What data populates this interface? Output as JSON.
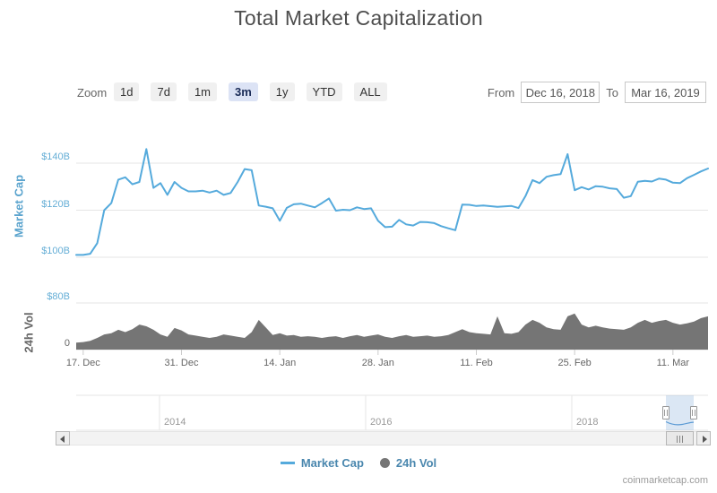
{
  "title": "Total Market Capitalization",
  "toolbar": {
    "zoom_label": "Zoom",
    "zoom_buttons": [
      {
        "label": "1d",
        "selected": false
      },
      {
        "label": "7d",
        "selected": false
      },
      {
        "label": "1m",
        "selected": false
      },
      {
        "label": "3m",
        "selected": true
      },
      {
        "label": "1y",
        "selected": false
      },
      {
        "label": "YTD",
        "selected": false
      },
      {
        "label": "ALL",
        "selected": false
      }
    ],
    "from_label": "From",
    "from_value": "Dec 16, 2018",
    "to_label": "To",
    "to_value": "Mar 16, 2019"
  },
  "axes": {
    "market_cap_title": "Market Cap",
    "volume_title": "24h Vol",
    "market_cap_ticks": [
      "$140B",
      "$120B",
      "$100B"
    ],
    "volume_ticks": [
      "$80B",
      "0"
    ]
  },
  "navigator": {
    "year_labels": [
      "2014",
      "2016",
      "2018"
    ]
  },
  "legend": {
    "items": [
      {
        "label": "Market Cap",
        "marker": "line",
        "color": "#55aadc"
      },
      {
        "label": "24h Vol",
        "marker": "circle",
        "color": "#757575"
      }
    ]
  },
  "watermark": "coinmarketcap.com",
  "colors": {
    "market_cap_line": "#55aadc",
    "volume_fill": "#757575",
    "axis_label_blue": "#65aed6",
    "axis_label_gray": "#666666",
    "gridline": "#e6e6e6",
    "selected_button_bg": "#dce3f5",
    "legend_text": "#4a87ae",
    "navigator_mask": "rgba(110,160,210,0.25)"
  },
  "chart_data": {
    "type": "line",
    "title": "Total Market Capitalization",
    "x_interval": "daily",
    "start_date": "2018-12-16",
    "end_date": "2019-03-16",
    "grid": "horizontal",
    "legend_position": "bottom",
    "dates": [
      "2018-12-16",
      "2018-12-17",
      "2018-12-18",
      "2018-12-19",
      "2018-12-20",
      "2018-12-21",
      "2018-12-22",
      "2018-12-23",
      "2018-12-24",
      "2018-12-25",
      "2018-12-26",
      "2018-12-27",
      "2018-12-28",
      "2018-12-29",
      "2018-12-30",
      "2018-12-31",
      "2019-01-01",
      "2019-01-02",
      "2019-01-03",
      "2019-01-04",
      "2019-01-05",
      "2019-01-06",
      "2019-01-07",
      "2019-01-08",
      "2019-01-09",
      "2019-01-10",
      "2019-01-11",
      "2019-01-12",
      "2019-01-13",
      "2019-01-14",
      "2019-01-15",
      "2019-01-16",
      "2019-01-17",
      "2019-01-18",
      "2019-01-19",
      "2019-01-20",
      "2019-01-21",
      "2019-01-22",
      "2019-01-23",
      "2019-01-24",
      "2019-01-25",
      "2019-01-26",
      "2019-01-27",
      "2019-01-28",
      "2019-01-29",
      "2019-01-30",
      "2019-01-31",
      "2019-02-01",
      "2019-02-02",
      "2019-02-03",
      "2019-02-04",
      "2019-02-05",
      "2019-02-06",
      "2019-02-07",
      "2019-02-08",
      "2019-02-09",
      "2019-02-10",
      "2019-02-11",
      "2019-02-12",
      "2019-02-13",
      "2019-02-14",
      "2019-02-15",
      "2019-02-16",
      "2019-02-17",
      "2019-02-18",
      "2019-02-19",
      "2019-02-20",
      "2019-02-21",
      "2019-02-22",
      "2019-02-23",
      "2019-02-24",
      "2019-02-25",
      "2019-02-26",
      "2019-02-27",
      "2019-02-28",
      "2019-03-01",
      "2019-03-02",
      "2019-03-03",
      "2019-03-04",
      "2019-03-05",
      "2019-03-06",
      "2019-03-07",
      "2019-03-08",
      "2019-03-09",
      "2019-03-10",
      "2019-03-11",
      "2019-03-12",
      "2019-03-13",
      "2019-03-14",
      "2019-03-15",
      "2019-03-16"
    ],
    "series": [
      {
        "name": "Market Cap",
        "type": "line",
        "color": "#55aadc",
        "unit": "billion USD",
        "ylim": [
          95,
          155
        ],
        "axis_tick_values": [
          100,
          120,
          140
        ],
        "values": [
          101,
          101,
          101.5,
          106,
          120,
          123,
          133,
          134,
          131,
          132,
          146,
          129.5,
          131.5,
          126.5,
          132,
          129.5,
          128,
          128,
          128.3,
          127.5,
          128.3,
          126.5,
          127.3,
          132,
          137.5,
          137,
          122,
          121.5,
          120.8,
          115.5,
          121,
          122.5,
          122.8,
          122,
          121.2,
          123,
          125,
          119.8,
          120.2,
          120,
          121.2,
          120.5,
          120.8,
          115.5,
          112.8,
          113,
          115.9,
          114,
          113.5,
          115,
          114.9,
          114.5,
          113.2,
          112.3,
          111.5,
          122.4,
          122.3,
          121.8,
          122,
          121.7,
          121.4,
          121.6,
          121.8,
          120.9,
          126,
          132.8,
          131.5,
          134.2,
          134.9,
          135.3,
          143.8,
          128.5,
          129.8,
          128.8,
          130.2,
          130,
          129.3,
          129,
          125.3,
          126,
          132.1,
          132.5,
          132.2,
          133.4,
          133,
          131.7,
          131.5,
          133.6,
          135,
          136.5,
          137.7
        ]
      },
      {
        "name": "24h Vol",
        "type": "area",
        "color": "#757575",
        "unit": "billion USD",
        "ylim": [
          0,
          80
        ],
        "axis_tick_values": [
          0,
          80
        ],
        "values": [
          12,
          13,
          15,
          20,
          26,
          28,
          34,
          30,
          35,
          43,
          40,
          34,
          26,
          22,
          37,
          33,
          26,
          24,
          22,
          20,
          22,
          26,
          24,
          22,
          20,
          30,
          51,
          38,
          25,
          28,
          24,
          25,
          22,
          23,
          22,
          20,
          22,
          23,
          20,
          23,
          25,
          22,
          24,
          26,
          22,
          20,
          23,
          25,
          22,
          23,
          24,
          22,
          23,
          25,
          30,
          35,
          30,
          28,
          27,
          26,
          57,
          28,
          27,
          30,
          43,
          51,
          46,
          38,
          35,
          34,
          57,
          62,
          43,
          38,
          41,
          38,
          36,
          35,
          34,
          38,
          46,
          51,
          46,
          49,
          51,
          46,
          43,
          45,
          48,
          54,
          57
        ]
      }
    ],
    "x_ticks": [
      {
        "label": "17. Dec",
        "day_index": 1
      },
      {
        "label": "31. Dec",
        "day_index": 15
      },
      {
        "label": "14. Jan",
        "day_index": 29
      },
      {
        "label": "28. Jan",
        "day_index": 43
      },
      {
        "label": "11. Feb",
        "day_index": 57
      },
      {
        "label": "25. Feb",
        "day_index": 71
      },
      {
        "label": "11. Mar",
        "day_index": 85
      }
    ]
  }
}
